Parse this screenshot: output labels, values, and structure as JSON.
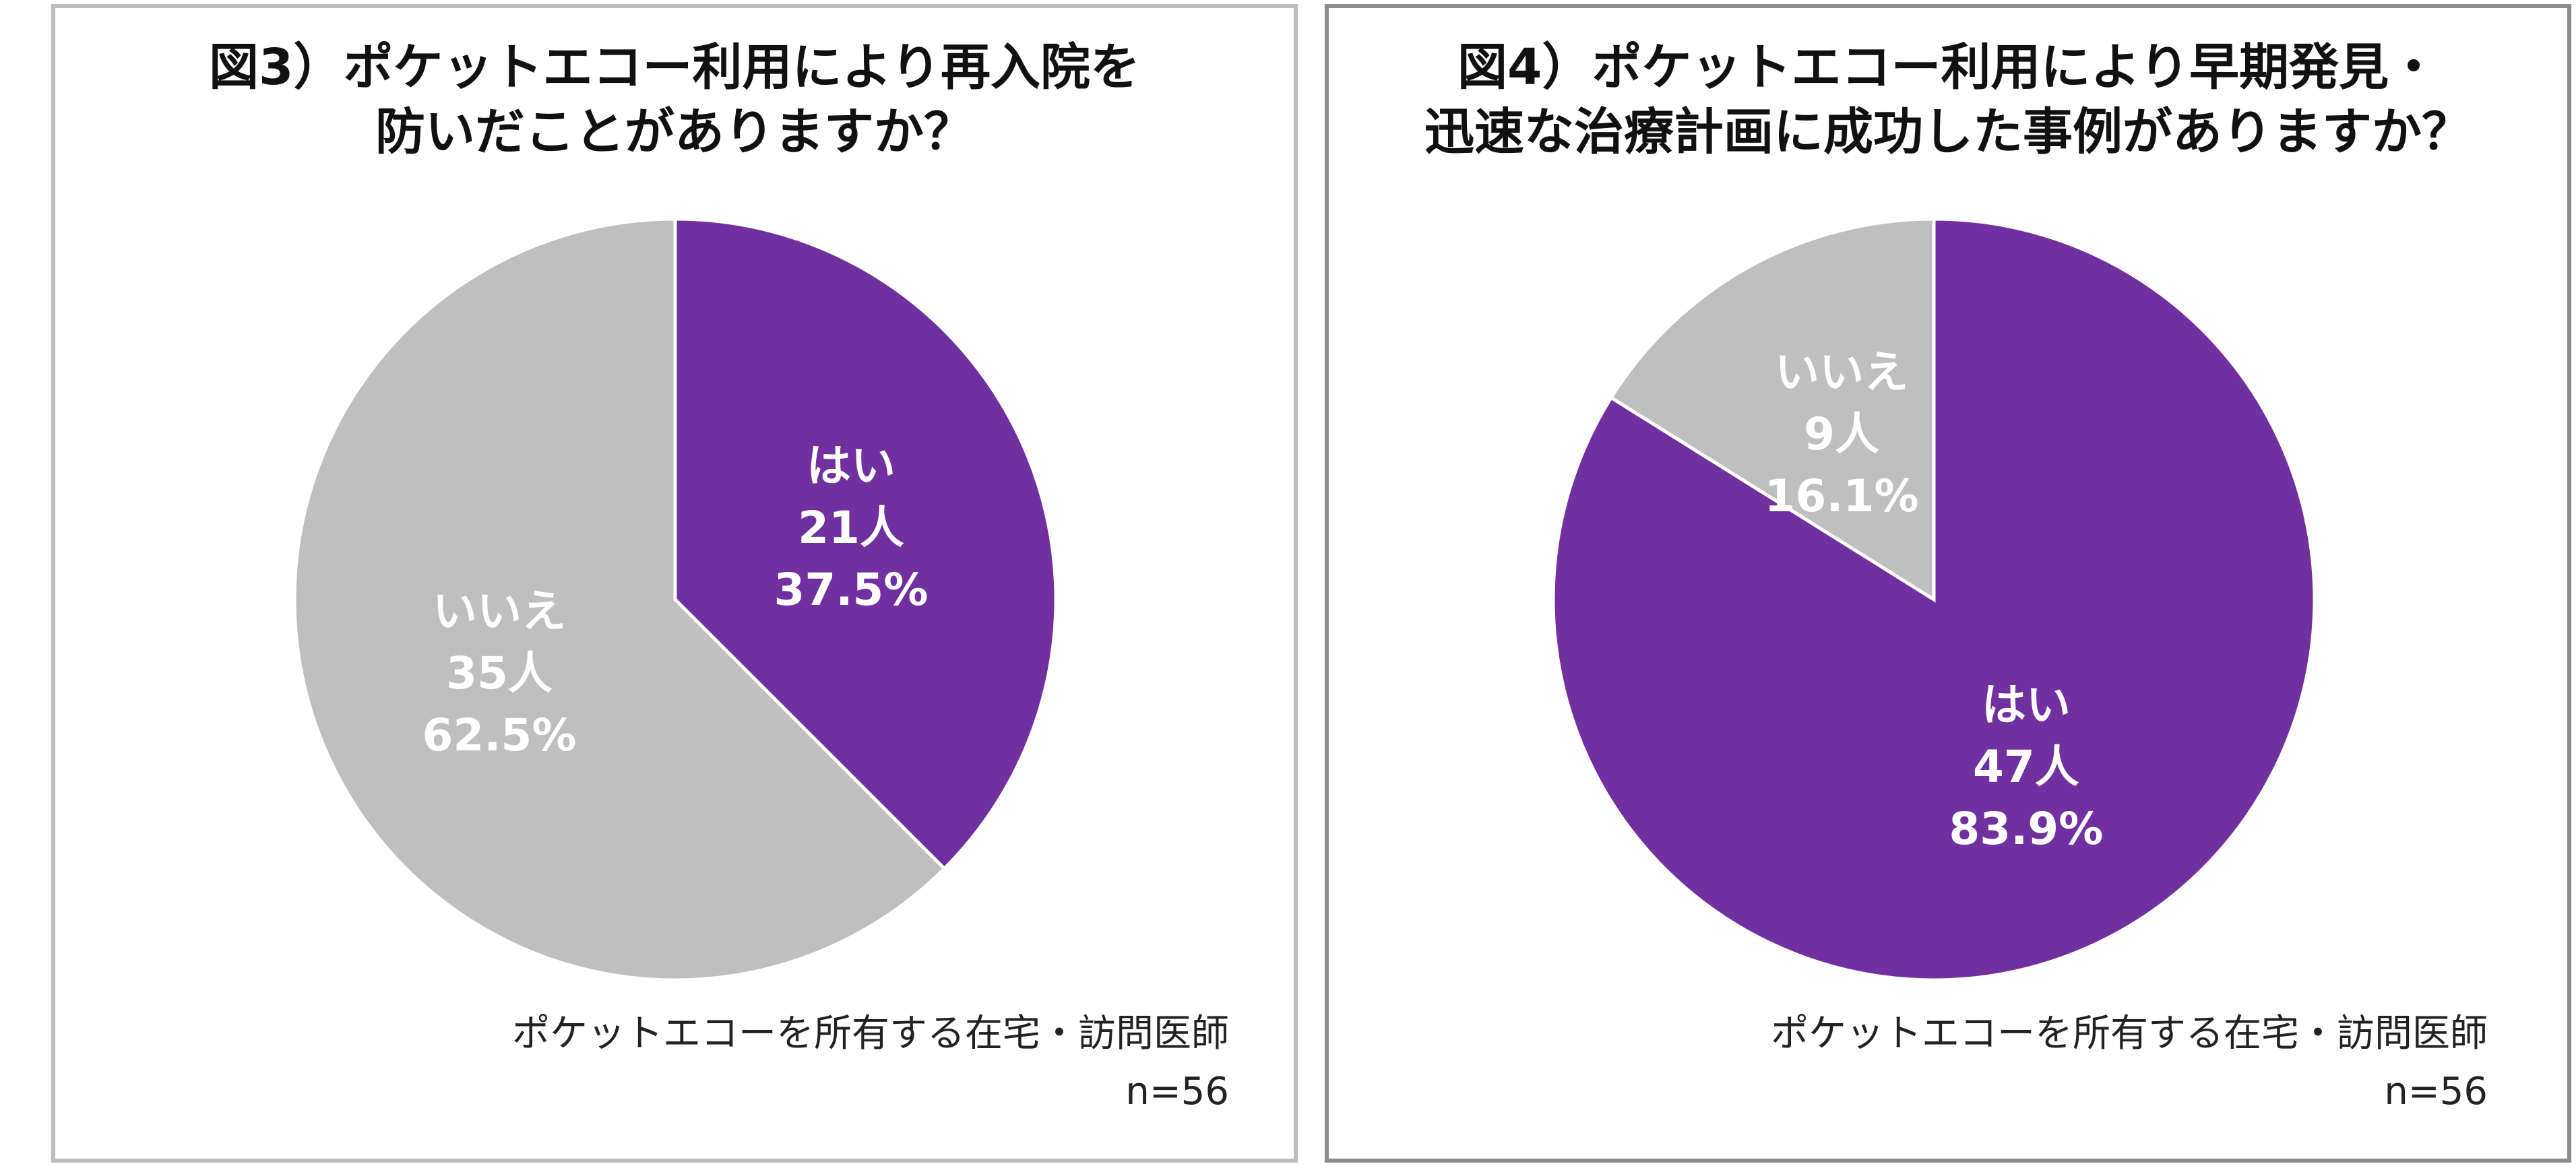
{
  "colors": {
    "yes": "#7030a0",
    "no": "#bfbfbf"
  },
  "chart_data": [
    {
      "type": "pie",
      "title_lines": [
        "図3）ポケットエコー利用により再入院を",
        "防いだことがありますか？"
      ],
      "slices": [
        {
          "label": "はい",
          "count_label": "21人",
          "percent_label": "37.5%",
          "count": 21,
          "percent": 37.5,
          "color": "#7030a0"
        },
        {
          "label": "いいえ",
          "count_label": "35人",
          "percent_label": "62.5%",
          "count": 35,
          "percent": 62.5,
          "color": "#bfbfbf"
        }
      ],
      "source": "ポケットエコーを所有する在宅・訪問医師",
      "n_label": "n=56",
      "n": 56
    },
    {
      "type": "pie",
      "title_lines": [
        "図4）ポケットエコー利用により早期発見・",
        "迅速な治療計画に成功した事例がありますか？"
      ],
      "slices": [
        {
          "label": "はい",
          "count_label": "47人",
          "percent_label": "83.9%",
          "count": 47,
          "percent": 83.9,
          "color": "#7030a0"
        },
        {
          "label": "いいえ",
          "count_label": "9人",
          "percent_label": "16.1%",
          "count": 9,
          "percent": 16.1,
          "color": "#bfbfbf"
        }
      ],
      "source": "ポケットエコーを所有する在宅・訪問医師",
      "n_label": "n=56",
      "n": 56
    }
  ]
}
